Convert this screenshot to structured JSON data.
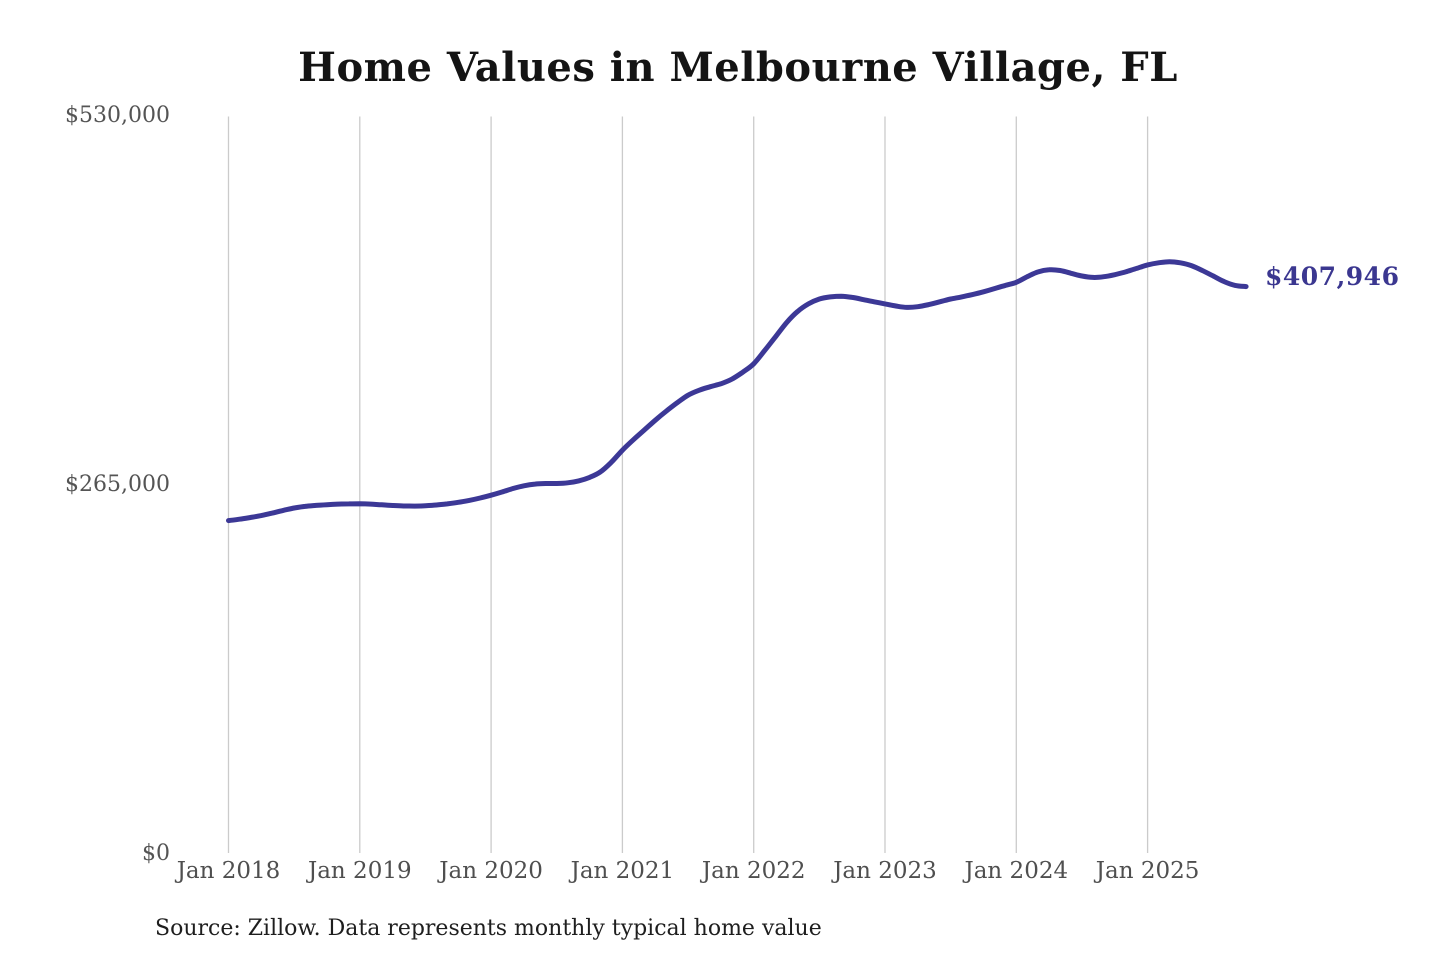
{
  "page": {
    "title": "Home Values in Melbourne Village, FL",
    "latest_value_label": "$407,946",
    "source_note": "Source: Zillow. Data represents monthly typical home value"
  },
  "chart_data": {
    "type": "line",
    "title": "Home Values in Melbourne Village, FL",
    "x_interval": "monthly",
    "x_start": "2018-01",
    "x_end": "2025-10",
    "x_tick_labels": [
      "Jan 2018",
      "Jan 2019",
      "Jan 2020",
      "Jan 2021",
      "Jan 2022",
      "Jan 2023",
      "Jan 2024",
      "Jan 2025"
    ],
    "y_ticks": [
      {
        "label": "$0",
        "value": 0
      },
      {
        "label": "$265,000",
        "value": 265000
      },
      {
        "label": "$530,000",
        "value": 530000
      }
    ],
    "ylim": [
      0,
      530000
    ],
    "gridlines": {
      "vertical": true,
      "horizontal": false,
      "color": "#cbcbcb"
    },
    "legend": "none",
    "end_label": {
      "text": "$407,946",
      "value": 407946
    },
    "series": [
      {
        "name": "Monthly typical home value",
        "color": "#3c3896",
        "values": [
          240000,
          241000,
          242200,
          243600,
          245400,
          247300,
          249000,
          250200,
          250900,
          251400,
          251800,
          252000,
          252100,
          251800,
          251300,
          250800,
          250500,
          250400,
          250700,
          251200,
          252000,
          253100,
          254500,
          256200,
          258200,
          260500,
          263000,
          265000,
          266200,
          266600,
          266600,
          267100,
          268500,
          271000,
          275000,
          282000,
          290500,
          298000,
          305000,
          312000,
          318500,
          324500,
          330000,
          333500,
          336000,
          338200,
          341500,
          346500,
          352500,
          362000,
          372000,
          382000,
          390000,
          395500,
          399000,
          400500,
          401000,
          400200,
          398600,
          397000,
          395500,
          394000,
          393000,
          393500,
          395000,
          397000,
          399000,
          400500,
          402200,
          404200,
          406500,
          408800,
          411000,
          415000,
          418500,
          420000,
          419500,
          417500,
          415500,
          414500,
          415000,
          416500,
          418500,
          421000,
          423500,
          425000,
          425800,
          425000,
          423000,
          419500,
          415500,
          411500,
          408800,
          407946
        ]
      }
    ]
  }
}
